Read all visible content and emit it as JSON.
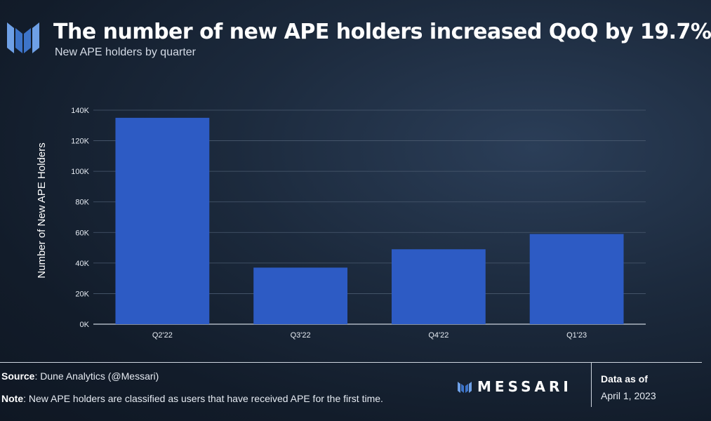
{
  "header": {
    "title": "The number of new APE holders increased QoQ by 19.7%",
    "subtitle": "New APE holders by quarter"
  },
  "chart_data": {
    "type": "bar",
    "categories": [
      "Q2'22",
      "Q3'22",
      "Q4'22",
      "Q1'23"
    ],
    "values": [
      135000,
      37000,
      49000,
      59000
    ],
    "title": "The number of new APE holders increased QoQ by 19.7%",
    "subtitle": "New APE holders by quarter",
    "xlabel": "",
    "ylabel": "Number of New APE Holders",
    "ylim": [
      0,
      140000
    ],
    "yticks": [
      0,
      20000,
      40000,
      60000,
      80000,
      100000,
      120000,
      140000
    ],
    "ytick_labels": [
      "0K",
      "20K",
      "40K",
      "60K",
      "80K",
      "100K",
      "120K",
      "140K"
    ],
    "grid": true,
    "legend": "none",
    "bar_color": "#2d5bc4"
  },
  "footer": {
    "source_label": "Source",
    "source_text": ": Dune Analytics (@Messari)",
    "note_label": "Note",
    "note_text": ": New APE holders are classified as users that have received APE for the first time.",
    "brand": "MESSARI",
    "as_of_label": "Data as of",
    "as_of_date": "April 1, 2023"
  },
  "colors": {
    "accent_light": "#5c8fdc",
    "accent_dark": "#2e5da8"
  }
}
